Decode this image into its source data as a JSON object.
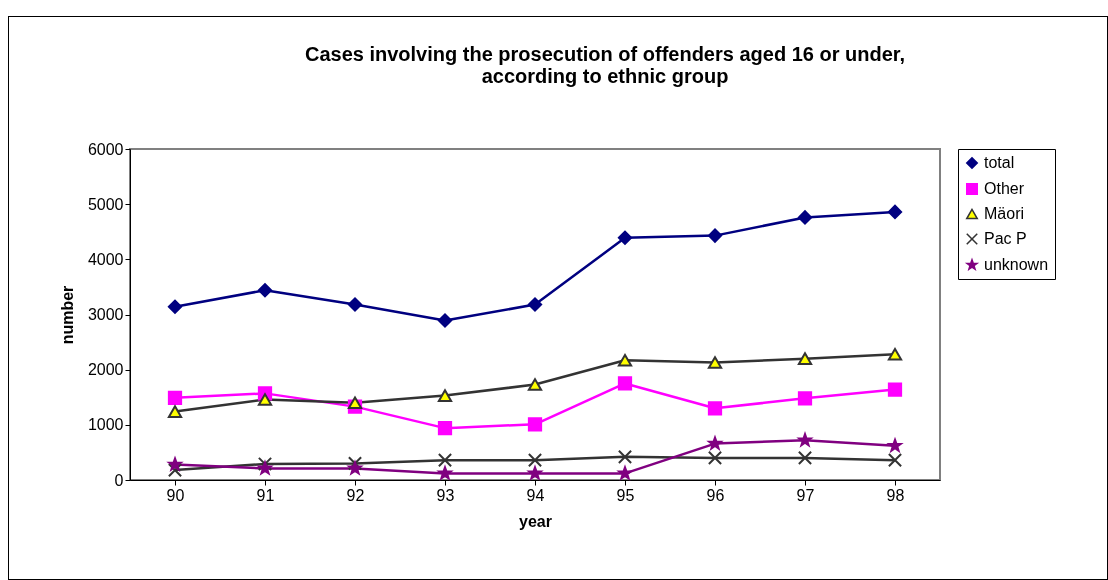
{
  "chart_data": {
    "type": "line",
    "title": "Cases involving the prosecution of offenders aged 16 or under,\naccording to ethnic group",
    "xlabel": "year",
    "ylabel": "number",
    "categories": [
      "90",
      "91",
      "92",
      "93",
      "94",
      "95",
      "96",
      "97",
      "98"
    ],
    "ylim": [
      0,
      6000
    ],
    "yticks": [
      0,
      1000,
      2000,
      3000,
      4000,
      5000,
      6000
    ],
    "grid": false,
    "legend": "right",
    "series": [
      {
        "name": "total",
        "color": "#000080",
        "marker": "diamond",
        "values": [
          3140,
          3440,
          3180,
          2890,
          3180,
          4390,
          4430,
          4760,
          4860
        ]
      },
      {
        "name": "Other",
        "color": "#ff00ff",
        "marker": "square",
        "values": [
          1490,
          1570,
          1330,
          940,
          1010,
          1750,
          1300,
          1480,
          1640
        ]
      },
      {
        "name": "Mäori",
        "color": "#333333",
        "marker": "triangle",
        "colors": [
          "#ffff00",
          "#ffff00",
          "#ffff00",
          "#ffff00",
          "#ffff00",
          "#ffff00",
          "#ffff00",
          "#ffff00",
          "#ffff00"
        ],
        "values": [
          1240,
          1460,
          1400,
          1530,
          1730,
          2170,
          2130,
          2200,
          2280
        ]
      },
      {
        "name": "Pac P",
        "color": "#333333",
        "marker": "cross",
        "values": [
          180,
          290,
          300,
          360,
          360,
          420,
          400,
          400,
          360
        ]
      },
      {
        "name": "unknown",
        "color": "#800080",
        "marker": "star",
        "values": [
          280,
          210,
          210,
          120,
          120,
          120,
          660,
          720,
          620
        ]
      }
    ]
  }
}
